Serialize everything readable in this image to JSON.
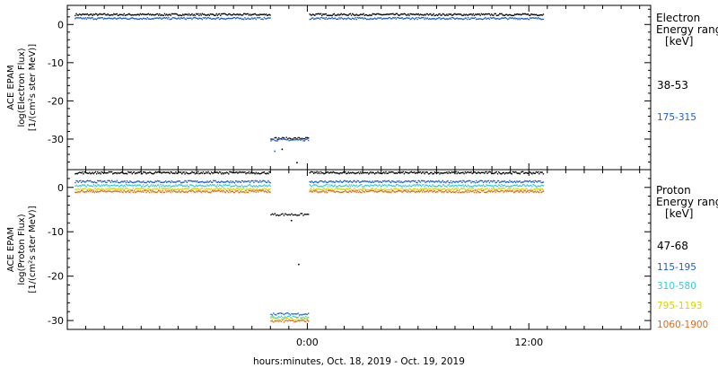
{
  "chart_data": [
    {
      "type": "scatter",
      "panel": "electron",
      "ylabel_lines": [
        "ACE EPAM",
        "log(Electron Flux)",
        "[1/(cm²s ster MeV)]"
      ],
      "ylim": [
        -38,
        5
      ],
      "yticks": [
        0,
        -10,
        -20,
        -30
      ],
      "legend_lines": [
        "Electron",
        "Energy ranges",
        "[keV]"
      ],
      "series": [
        {
          "name": "38-53",
          "color": "#000000",
          "segments": [
            {
              "x": [
                -12.6,
                -2.0
              ],
              "y": 2.6
            },
            {
              "x": [
                0.1,
                12.8
              ],
              "y": 2.6
            },
            {
              "x": [
                -2.0,
                0.1
              ],
              "y": -29.8
            }
          ],
          "outliers": [
            [
              -1.4,
              -32.5
            ],
            [
              -0.6,
              -36.0
            ]
          ]
        },
        {
          "name": "175-315",
          "color": "#1f5fd0",
          "segments": [
            {
              "x": [
                -12.6,
                -2.0
              ],
              "y": 1.6
            },
            {
              "x": [
                0.1,
                12.8
              ],
              "y": 1.6
            },
            {
              "x": [
                -2.0,
                0.1
              ],
              "y": -30.2
            }
          ],
          "outliers": [
            [
              -1.8,
              -33.0
            ]
          ]
        }
      ]
    },
    {
      "type": "scatter",
      "panel": "proton",
      "ylabel_lines": [
        "ACE EPAM",
        "log(Proton Flux)",
        "[1/(cm²s ster MeV)]"
      ],
      "ylim": [
        -32,
        4
      ],
      "yticks": [
        0,
        -10,
        -20,
        -30
      ],
      "legend_lines": [
        "Proton",
        "Energy ranges",
        "[keV]"
      ],
      "series": [
        {
          "name": "47-68",
          "color": "#000000",
          "segments": [
            {
              "x": [
                -12.6,
                -2.0
              ],
              "y": 3.3
            },
            {
              "x": [
                0.1,
                12.8
              ],
              "y": 3.3
            },
            {
              "x": [
                -2.0,
                0.1
              ],
              "y": -6.1
            }
          ],
          "outliers": [
            [
              -0.5,
              -17.2
            ],
            [
              -0.9,
              -7.3
            ]
          ]
        },
        {
          "name": "115-195",
          "color": "#1f5fd0",
          "segments": [
            {
              "x": [
                -12.6,
                -2.0
              ],
              "y": 1.3
            },
            {
              "x": [
                0.1,
                12.8
              ],
              "y": 1.3
            },
            {
              "x": [
                -2.0,
                0.1
              ],
              "y": -28.5
            }
          ],
          "outliers": []
        },
        {
          "name": "310-580",
          "color": "#33ccdd",
          "segments": [
            {
              "x": [
                -12.6,
                -2.0
              ],
              "y": 0.4
            },
            {
              "x": [
                0.1,
                12.8
              ],
              "y": 0.4
            },
            {
              "x": [
                -2.0,
                0.1
              ],
              "y": -29.2
            }
          ],
          "outliers": []
        },
        {
          "name": "795-1193",
          "color": "#d6d600",
          "segments": [
            {
              "x": [
                -12.6,
                -2.0
              ],
              "y": -0.4
            },
            {
              "x": [
                0.1,
                12.8
              ],
              "y": -0.4
            },
            {
              "x": [
                -2.0,
                0.1
              ],
              "y": -29.7
            }
          ],
          "outliers": []
        },
        {
          "name": "1060-1900",
          "color": "#dd6a1c",
          "segments": [
            {
              "x": [
                -12.6,
                -2.0
              ],
              "y": -0.9
            },
            {
              "x": [
                0.1,
                12.8
              ],
              "y": -0.9
            },
            {
              "x": [
                -2.0,
                0.1
              ],
              "y": -30.1
            }
          ],
          "outliers": []
        }
      ]
    }
  ],
  "x_axis": {
    "unit": "hours",
    "xlim": [
      -13.0,
      18.6
    ],
    "major_ticks": [
      0,
      12
    ],
    "major_labels": [
      "0:00",
      "12:00"
    ],
    "minor_tick_step": 1,
    "xlabel": "hours:minutes, Oct. 18, 2019 - Oct. 19, 2019"
  }
}
